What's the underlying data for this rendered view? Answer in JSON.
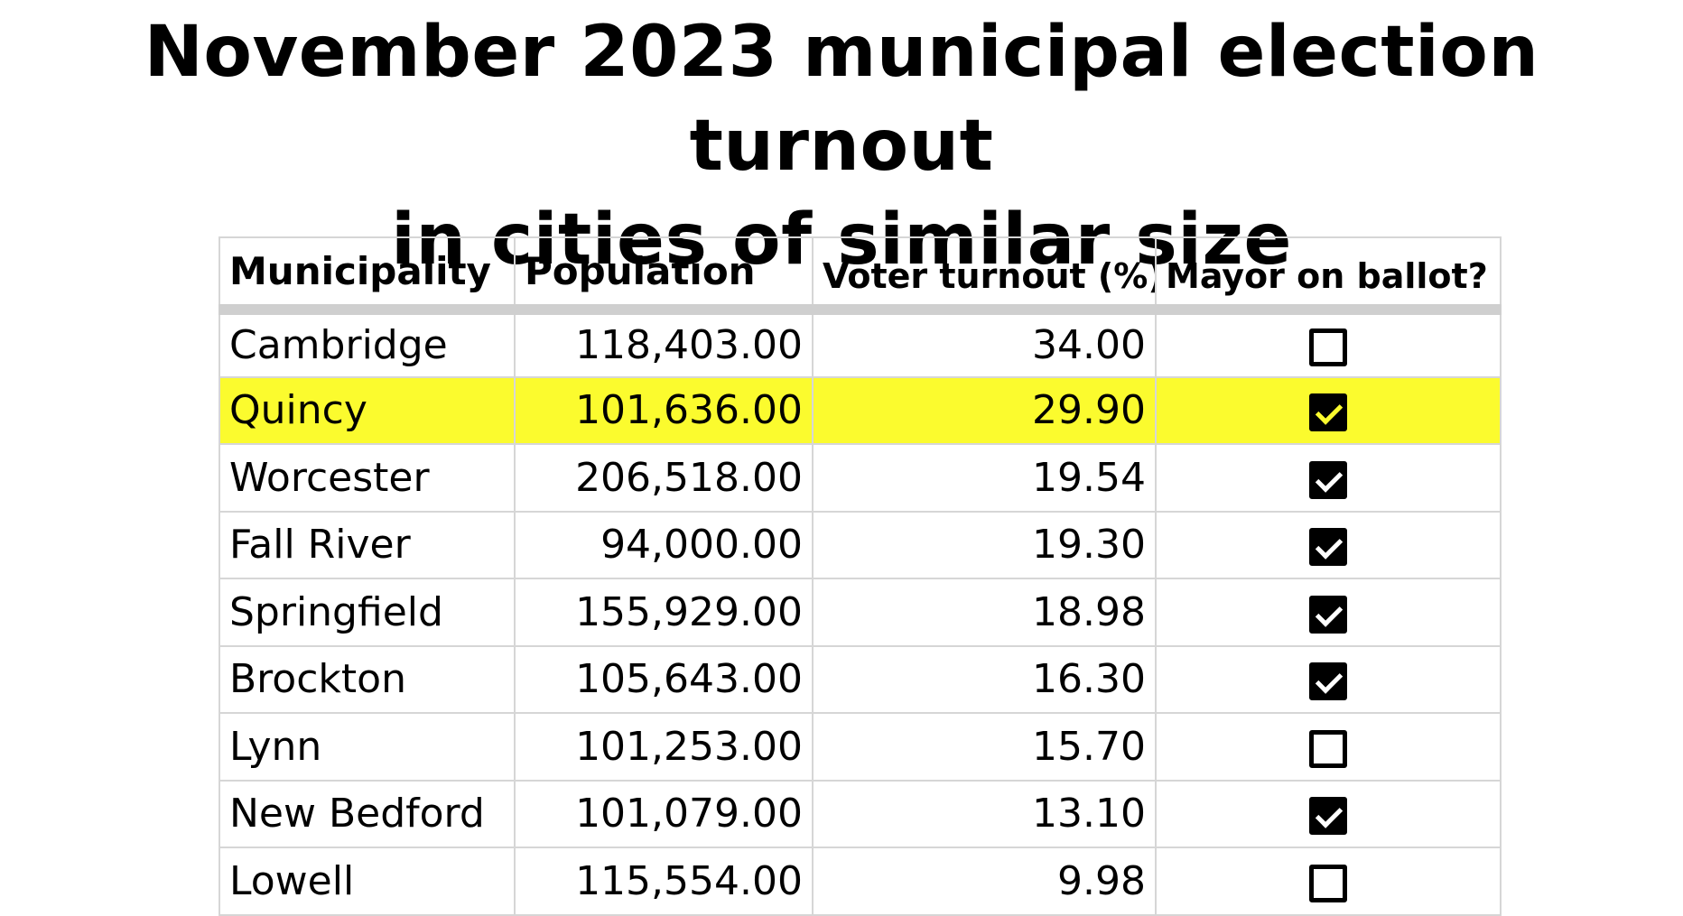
{
  "chart_data": {
    "type": "table",
    "title_lines": [
      "November 2023 municipal election turnout",
      "in cities of similar size"
    ],
    "columns": [
      "Municipality",
      "Population",
      "Voter turnout (%)",
      "Mayor on ballot?"
    ],
    "highlight_color": "#fbfb2e",
    "rows": [
      {
        "municipality": "Cambridge",
        "population": "118,403.00",
        "turnout": "34.00",
        "mayor": false,
        "highlight": false
      },
      {
        "municipality": "Quincy",
        "population": "101,636.00",
        "turnout": "29.90",
        "mayor": true,
        "highlight": true
      },
      {
        "municipality": "Worcester",
        "population": "206,518.00",
        "turnout": "19.54",
        "mayor": true,
        "highlight": false
      },
      {
        "municipality": "Fall River",
        "population": "94,000.00",
        "turnout": "19.30",
        "mayor": true,
        "highlight": false
      },
      {
        "municipality": "Springfield",
        "population": "155,929.00",
        "turnout": "18.98",
        "mayor": true,
        "highlight": false
      },
      {
        "municipality": "Brockton",
        "population": "105,643.00",
        "turnout": "16.30",
        "mayor": true,
        "highlight": false
      },
      {
        "municipality": "Lynn",
        "population": "101,253.00",
        "turnout": "15.70",
        "mayor": false,
        "highlight": false
      },
      {
        "municipality": "New Bedford",
        "population": "101,079.00",
        "turnout": "13.10",
        "mayor": true,
        "highlight": false
      },
      {
        "municipality": "Lowell",
        "population": "115,554.00",
        "turnout": "9.98",
        "mayor": false,
        "highlight": false
      }
    ]
  }
}
